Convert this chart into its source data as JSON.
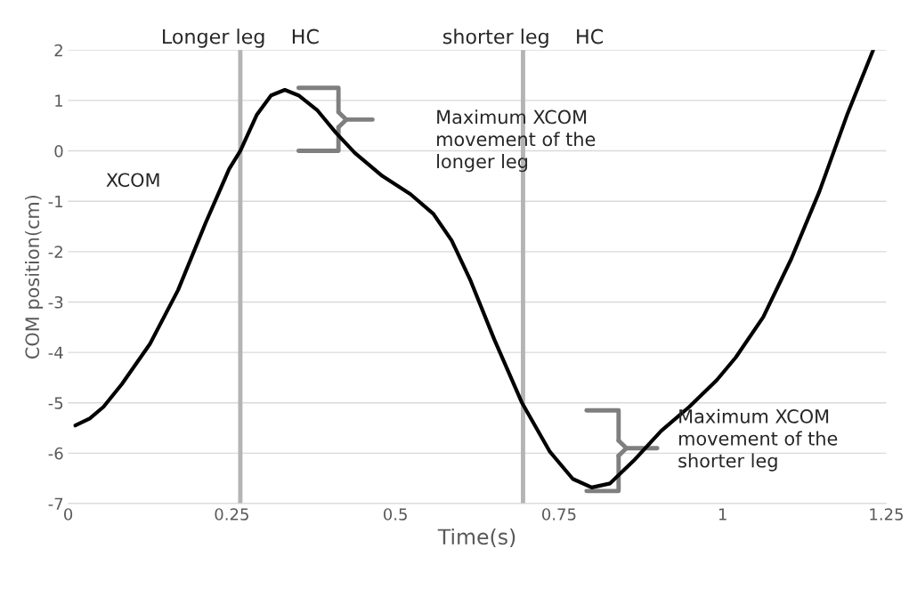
{
  "chart_data": {
    "type": "line",
    "xlabel": "Time(s)",
    "ylabel": "COM position(cm)",
    "x": [
      0.011,
      0.033,
      0.054,
      0.082,
      0.125,
      0.168,
      0.21,
      0.246,
      0.263,
      0.288,
      0.31,
      0.331,
      0.352,
      0.381,
      0.409,
      0.438,
      0.48,
      0.523,
      0.558,
      0.586,
      0.615,
      0.651,
      0.693,
      0.736,
      0.771,
      0.8,
      0.828,
      0.864,
      0.906,
      0.949,
      0.991,
      1.02,
      1.062,
      1.105,
      1.148,
      1.19,
      1.23
    ],
    "series": [
      {
        "color": "#000000",
        "values": [
          -5.45,
          -5.31,
          -5.08,
          -4.63,
          -3.83,
          -2.76,
          -1.43,
          -0.36,
          0,
          0.71,
          1.1,
          1.21,
          1.1,
          0.8,
          0.36,
          -0.04,
          -0.5,
          -0.86,
          -1.25,
          -1.78,
          -2.58,
          -3.74,
          -4.99,
          -5.97,
          -6.51,
          -6.68,
          -6.6,
          -6.15,
          -5.56,
          -5.08,
          -4.55,
          -4.1,
          -3.3,
          -2.14,
          -0.8,
          0.71,
          2.0
        ]
      }
    ],
    "xlim": [
      0,
      1.25
    ],
    "xticks": [
      0,
      0.25,
      0.5,
      0.75,
      1,
      1.25
    ],
    "ylim": [
      -7,
      2
    ],
    "yticks": [
      -7,
      -6,
      -5,
      -4,
      -3,
      -2,
      -1,
      0,
      1,
      2
    ],
    "grid": "y",
    "legend": false,
    "marker": "none",
    "line_style": "solid",
    "ref_lines": [
      {
        "axis": "x",
        "value": 0.263,
        "label": "Longer leg    HC",
        "color": "#b4b4b4"
      },
      {
        "axis": "x",
        "value": 0.695,
        "label": "shorter leg    HC",
        "color": "#b4b4b4"
      }
    ],
    "annotations": [
      "XCOM",
      "Maximum XCOM\nmovement of the\nlonger leg",
      "Maximum XCOM\nmovement of the\nshorter leg"
    ]
  }
}
